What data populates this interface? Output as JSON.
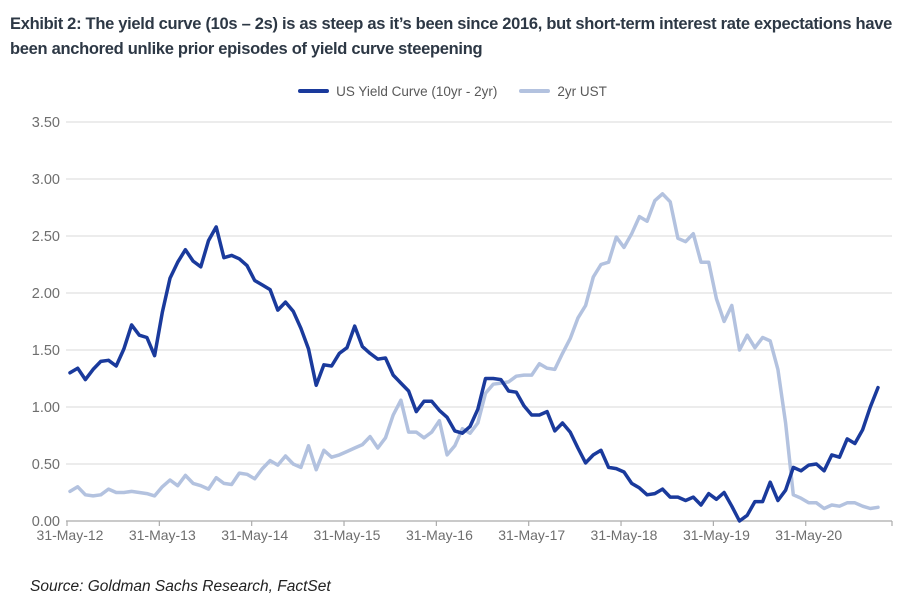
{
  "header": {
    "title": "Exhibit 2: The yield curve (10s – 2s) is as steep as it’s been since 2016, but short-term interest rate expectations have been anchored unlike prior episodes of yield curve steepening"
  },
  "footer": {
    "source": "Source: Goldman Sachs Research, FactSet"
  },
  "chart_data": {
    "type": "line",
    "x_start": "31-May-12",
    "x_frequency": "monthly",
    "x_tick_labels": [
      "31-May-12",
      "31-May-13",
      "31-May-14",
      "31-May-15",
      "31-May-16",
      "31-May-17",
      "31-May-18",
      "31-May-19",
      "31-May-20"
    ],
    "y_tick_labels": [
      "0.00",
      "0.50",
      "1.00",
      "1.50",
      "2.00",
      "2.50",
      "3.00",
      "3.50"
    ],
    "ylim": [
      0,
      3.5
    ],
    "grid": "horizontal",
    "legend_position": "top-center",
    "colors": {
      "gridline": "#D9D9D9",
      "axis": "#ABABAB",
      "tick_label": "#6E6E6E",
      "legend_label": "#595959",
      "title_text": "#2D3845"
    },
    "series": [
      {
        "name": "US Yield Curve (10yr - 2yr)",
        "color": "#1A3A9C",
        "values": [
          1.3,
          1.34,
          1.24,
          1.33,
          1.4,
          1.41,
          1.36,
          1.51,
          1.72,
          1.63,
          1.61,
          1.45,
          1.83,
          2.13,
          2.27,
          2.38,
          2.28,
          2.23,
          2.46,
          2.58,
          2.31,
          2.33,
          2.3,
          2.24,
          2.11,
          2.07,
          2.03,
          1.85,
          1.92,
          1.84,
          1.69,
          1.51,
          1.19,
          1.37,
          1.36,
          1.47,
          1.52,
          1.71,
          1.53,
          1.47,
          1.42,
          1.43,
          1.28,
          1.21,
          1.14,
          0.96,
          1.05,
          1.05,
          0.97,
          0.91,
          0.79,
          0.77,
          0.83,
          0.98,
          1.25,
          1.25,
          1.24,
          1.14,
          1.13,
          1.01,
          0.93,
          0.93,
          0.96,
          0.79,
          0.86,
          0.78,
          0.64,
          0.51,
          0.58,
          0.62,
          0.47,
          0.46,
          0.43,
          0.33,
          0.29,
          0.23,
          0.24,
          0.28,
          0.21,
          0.21,
          0.18,
          0.21,
          0.14,
          0.24,
          0.19,
          0.25,
          0.13,
          0.0,
          0.05,
          0.17,
          0.17,
          0.34,
          0.18,
          0.27,
          0.47,
          0.44,
          0.49,
          0.5,
          0.44,
          0.58,
          0.56,
          0.72,
          0.68,
          0.8,
          1.0,
          1.17
        ]
      },
      {
        "name": "2yr UST",
        "color": "#B3C2DF",
        "values": [
          0.26,
          0.3,
          0.23,
          0.22,
          0.23,
          0.28,
          0.25,
          0.25,
          0.26,
          0.25,
          0.24,
          0.22,
          0.3,
          0.36,
          0.31,
          0.4,
          0.33,
          0.31,
          0.28,
          0.38,
          0.33,
          0.32,
          0.42,
          0.41,
          0.37,
          0.46,
          0.53,
          0.49,
          0.57,
          0.5,
          0.47,
          0.66,
          0.45,
          0.62,
          0.56,
          0.58,
          0.61,
          0.64,
          0.67,
          0.74,
          0.64,
          0.73,
          0.93,
          1.06,
          0.78,
          0.78,
          0.73,
          0.78,
          0.88,
          0.58,
          0.66,
          0.81,
          0.77,
          0.86,
          1.12,
          1.2,
          1.21,
          1.22,
          1.27,
          1.28,
          1.28,
          1.38,
          1.34,
          1.33,
          1.47,
          1.6,
          1.78,
          1.89,
          2.14,
          2.25,
          2.27,
          2.49,
          2.4,
          2.52,
          2.67,
          2.63,
          2.81,
          2.87,
          2.8,
          2.48,
          2.45,
          2.52,
          2.27,
          2.27,
          1.95,
          1.75,
          1.89,
          1.5,
          1.63,
          1.52,
          1.61,
          1.58,
          1.33,
          0.86,
          0.23,
          0.2,
          0.16,
          0.16,
          0.11,
          0.14,
          0.13,
          0.16,
          0.16,
          0.13,
          0.11,
          0.12
        ]
      }
    ]
  }
}
